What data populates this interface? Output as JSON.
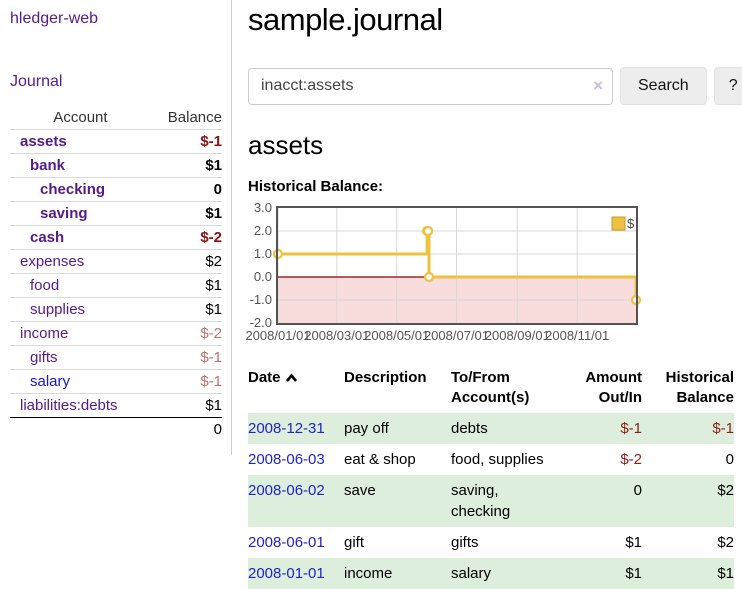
{
  "sidebar": {
    "brand": "hledger-web",
    "journal_link": "Journal",
    "accounts_header": {
      "account": "Account",
      "balance": "Balance"
    },
    "accounts": [
      {
        "name": "assets",
        "depth": 0,
        "style": "bold",
        "balance": "$-1",
        "balance_style": "neg-strong"
      },
      {
        "name": "bank",
        "depth": 1,
        "style": "bold",
        "balance": "$1",
        "balance_style": "bold"
      },
      {
        "name": "checking",
        "depth": 2,
        "style": "bold",
        "balance": "0",
        "balance_style": "bold"
      },
      {
        "name": "saving",
        "depth": 2,
        "style": "bold",
        "balance": "$1",
        "balance_style": "bold"
      },
      {
        "name": "cash",
        "depth": 1,
        "style": "bold",
        "balance": "$-2",
        "balance_style": "neg-strong"
      },
      {
        "name": "expenses",
        "depth": 0,
        "style": "plain",
        "balance": "$2",
        "balance_style": "plain"
      },
      {
        "name": "food",
        "depth": 1,
        "style": "plain",
        "balance": "$1",
        "balance_style": "plain"
      },
      {
        "name": "supplies",
        "depth": 1,
        "style": "plain",
        "balance": "$1",
        "balance_style": "plain"
      },
      {
        "name": "income",
        "depth": 0,
        "style": "plain",
        "balance": "$-2",
        "balance_style": "neg-soft"
      },
      {
        "name": "gifts",
        "depth": 1,
        "style": "plain",
        "balance": "$-1",
        "balance_style": "neg-soft"
      },
      {
        "name": "salary",
        "depth": 1,
        "style": "blue",
        "balance": "$-1",
        "balance_style": "neg-soft"
      },
      {
        "name": "liabilities:debts",
        "depth": 0,
        "style": "plain",
        "balance": "$1",
        "balance_style": "plain"
      }
    ],
    "total": "0"
  },
  "header": {
    "title": "sample.journal"
  },
  "search": {
    "value": "inacct:assets",
    "clear_icon": "×",
    "button": "Search",
    "help_button": "?"
  },
  "account_page": {
    "heading": "assets",
    "chart_label": "Historical Balance:"
  },
  "chart_data": {
    "type": "line",
    "title": "Historical Balance",
    "steps": true,
    "markers": true,
    "x_type": "date",
    "xrange": [
      "2008-01-01",
      "2008-12-31"
    ],
    "ylim": [
      -2,
      3
    ],
    "ytick_values": [
      3,
      2,
      1,
      0,
      -1,
      -2
    ],
    "yticks": [
      "3.0",
      "2.0",
      "1.0",
      "0.0",
      "-1.0",
      "-2.0"
    ],
    "xticks": [
      {
        "label": "2008/01/01",
        "date": "2008-01-01"
      },
      {
        "label": "2008/03/01",
        "date": "2008-03-01"
      },
      {
        "label": "2008/05/01",
        "date": "2008-05-01"
      },
      {
        "label": "2008/07/01",
        "date": "2008-07-01"
      },
      {
        "label": "2008/09/01",
        "date": "2008-09-01"
      },
      {
        "label": "2008/11/01",
        "date": "2008-11-01"
      }
    ],
    "series": [
      {
        "name": "$",
        "color": "#edc240",
        "points": [
          [
            "2008-01-01",
            1
          ],
          [
            "2008-06-01",
            2
          ],
          [
            "2008-06-02",
            2
          ],
          [
            "2008-06-03",
            0
          ],
          [
            "2008-12-31",
            -1
          ]
        ]
      }
    ],
    "legend": {
      "label": "$",
      "position": "top-right"
    },
    "grid": true,
    "grid_color": "#d8d8d8",
    "negative_region_fill": "#f9dcdc",
    "zero_line_color": "#8b0000",
    "border_color": "#545454",
    "tick_label_color": "#545454"
  },
  "register": {
    "columns": [
      {
        "label": "Date",
        "align": "left",
        "sorted": "asc"
      },
      {
        "label": "Description",
        "align": "left"
      },
      {
        "label": "To/From Account(s)",
        "align": "left"
      },
      {
        "label": "Amount Out/In",
        "align": "right"
      },
      {
        "label": "Historical Balance",
        "align": "right"
      }
    ],
    "rows": [
      {
        "date": "2008-12-31",
        "description": "pay off",
        "accounts": "debts",
        "amount": "$-1",
        "amount_negative": true,
        "balance": "$-1",
        "balance_negative": true
      },
      {
        "date": "2008-06-03",
        "description": "eat & shop",
        "accounts": "food, supplies",
        "amount": "$-2",
        "amount_negative": true,
        "balance": "0",
        "balance_negative": false
      },
      {
        "date": "2008-06-02",
        "description": "save",
        "accounts": "saving, checking",
        "amount": "0",
        "amount_negative": false,
        "balance": "$2",
        "balance_negative": false
      },
      {
        "date": "2008-06-01",
        "description": "gift",
        "accounts": "gifts",
        "amount": "$1",
        "amount_negative": false,
        "balance": "$2",
        "balance_negative": false
      },
      {
        "date": "2008-01-01",
        "description": "income",
        "accounts": "salary",
        "amount": "$1",
        "amount_negative": false,
        "balance": "$1",
        "balance_negative": false
      }
    ]
  },
  "colors": {
    "link_purple": "#551a8b",
    "link_blue": "#1414dd",
    "date_link_blue": "#2222cc",
    "negative_strong": "#8b1111",
    "negative_soft": "#bb7474",
    "register_negative": "#8f1b1b",
    "stripe_green": "#ddeedd",
    "series_gold": "#edc240"
  }
}
